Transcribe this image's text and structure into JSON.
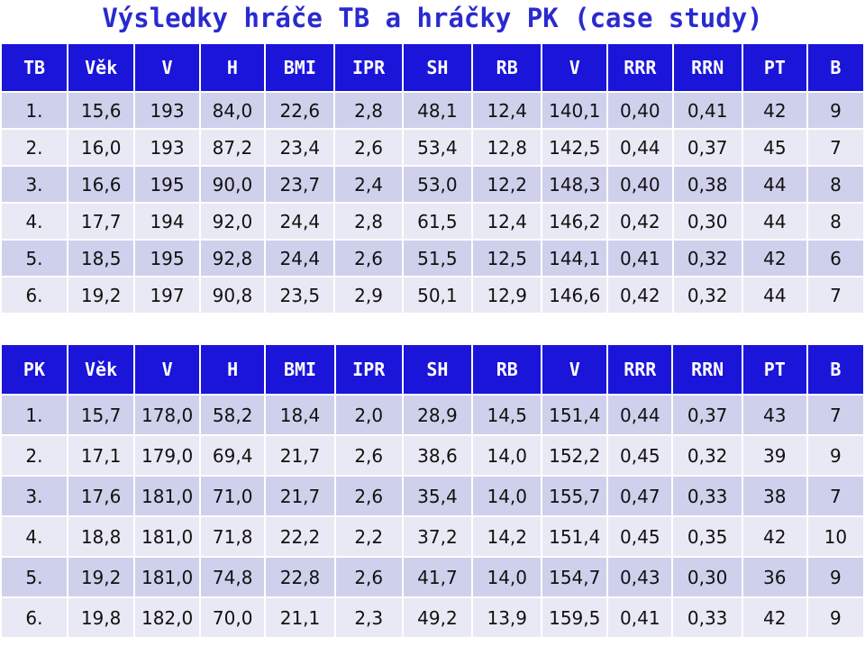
{
  "title": "Výsledky hráče TB a hráčky PK (case study)",
  "tb_table": {
    "headers": [
      "TB",
      "Věk",
      "V",
      "H",
      "BMI",
      "IPR",
      "SH",
      "RB",
      "V",
      "RRR",
      "RRN",
      "PT",
      "B"
    ],
    "rows": [
      [
        "1.",
        "15,6",
        "193",
        "84,0",
        "22,6",
        "2,8",
        "48,1",
        "12,4",
        "140,1",
        "0,40",
        "0,41",
        "42",
        "9"
      ],
      [
        "2.",
        "16,0",
        "193",
        "87,2",
        "23,4",
        "2,6",
        "53,4",
        "12,8",
        "142,5",
        "0,44",
        "0,37",
        "45",
        "7"
      ],
      [
        "3.",
        "16,6",
        "195",
        "90,0",
        "23,7",
        "2,4",
        "53,0",
        "12,2",
        "148,3",
        "0,40",
        "0,38",
        "44",
        "8"
      ],
      [
        "4.",
        "17,7",
        "194",
        "92,0",
        "24,4",
        "2,8",
        "61,5",
        "12,4",
        "146,2",
        "0,42",
        "0,30",
        "44",
        "8"
      ],
      [
        "5.",
        "18,5",
        "195",
        "92,8",
        "24,4",
        "2,6",
        "51,5",
        "12,5",
        "144,1",
        "0,41",
        "0,32",
        "42",
        "6"
      ],
      [
        "6.",
        "19,2",
        "197",
        "90,8",
        "23,5",
        "2,9",
        "50,1",
        "12,9",
        "146,6",
        "0,42",
        "0,32",
        "44",
        "7"
      ]
    ]
  },
  "pk_table": {
    "headers": [
      "PK",
      "Věk",
      "V",
      "H",
      "BMI",
      "IPR",
      "SH",
      "RB",
      "V",
      "RRR",
      "RRN",
      "PT",
      "B"
    ],
    "rows": [
      [
        "1.",
        "15,7",
        "178,0",
        "58,2",
        "18,4",
        "2,0",
        "28,9",
        "14,5",
        "151,4",
        "0,44",
        "0,37",
        "43",
        "7"
      ],
      [
        "2.",
        "17,1",
        "179,0",
        "69,4",
        "21,7",
        "2,6",
        "38,6",
        "14,0",
        "152,2",
        "0,45",
        "0,32",
        "39",
        "9"
      ],
      [
        "3.",
        "17,6",
        "181,0",
        "71,0",
        "21,7",
        "2,6",
        "35,4",
        "14,0",
        "155,7",
        "0,47",
        "0,33",
        "38",
        "7"
      ],
      [
        "4.",
        "18,8",
        "181,0",
        "71,8",
        "22,2",
        "2,2",
        "37,2",
        "14,2",
        "151,4",
        "0,45",
        "0,35",
        "42",
        "10"
      ],
      [
        "5.",
        "19,2",
        "181,0",
        "74,8",
        "22,8",
        "2,6",
        "41,7",
        "14,0",
        "154,7",
        "0,43",
        "0,30",
        "36",
        "9"
      ],
      [
        "6.",
        "19,8",
        "182,0",
        "70,0",
        "21,1",
        "2,3",
        "49,2",
        "13,9",
        "159,5",
        "0,41",
        "0,33",
        "42",
        "9"
      ]
    ]
  },
  "colors": {
    "title": "#2a2ad0",
    "header_bg": "#1a15d8",
    "row_odd": "#cfd0ec",
    "row_even": "#e9e9f5"
  }
}
